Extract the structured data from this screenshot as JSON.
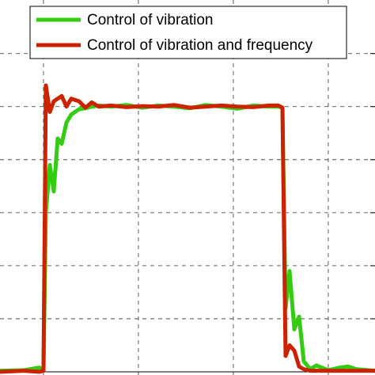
{
  "chart_data": {
    "type": "line",
    "x": [
      -0.458,
      -0.208,
      -0.042,
      0,
      0.025,
      0.067,
      0.108,
      0.15,
      0.192,
      0.242,
      0.292,
      0.375,
      0.442,
      0.508,
      0.583,
      0.708,
      0.875,
      1.042,
      1.208,
      1.375,
      1.542,
      1.708,
      1.875,
      2.042,
      2.208,
      2.375,
      2.475,
      2.517,
      2.55,
      2.592,
      2.642,
      2.692,
      2.742,
      2.808,
      2.875,
      3,
      3.125,
      3.208,
      3.292,
      3.492
    ],
    "series": [
      {
        "name": "Control of vibration",
        "color": "#33cc11",
        "values": [
          0.02,
          0.03,
          0.08,
          0.02,
          3.0,
          3.9,
          3.4,
          4.4,
          4.3,
          4.7,
          4.85,
          4.95,
          4.97,
          5.0,
          5.02,
          5.0,
          5.03,
          4.98,
          5.02,
          5.0,
          4.97,
          5.03,
          5.0,
          4.96,
          5.02,
          5.0,
          5.0,
          4.98,
          1.2,
          1.9,
          0.8,
          1.04,
          0.2,
          0.05,
          0.12,
          0.03,
          0.08,
          0.1,
          0.05,
          0.02
        ]
      },
      {
        "name": "Control of vibration and frequency",
        "color": "#cc2200",
        "values": [
          0.0,
          0.02,
          0.0,
          0.02,
          5.4,
          4.9,
          5.1,
          5.15,
          5.2,
          5.0,
          5.15,
          5.1,
          4.98,
          5.08,
          5.0,
          5.02,
          4.99,
          5.01,
          5.0,
          5.03,
          4.98,
          5.0,
          5.02,
          5.0,
          4.99,
          5.02,
          5.02,
          4.98,
          0.3,
          0.5,
          0.4,
          0.1,
          0.05,
          0.02,
          0.02,
          0.02,
          0.02,
          0.02,
          0.02,
          0.02
        ]
      }
    ],
    "xlim": [
      -0.458,
      3.492
    ],
    "ylim": [
      -0.06,
      7.01
    ],
    "xticks": [
      0,
      1,
      2,
      3
    ],
    "yticks": [
      1,
      2,
      3,
      4,
      5,
      6
    ],
    "grid": true,
    "legend": "top"
  }
}
